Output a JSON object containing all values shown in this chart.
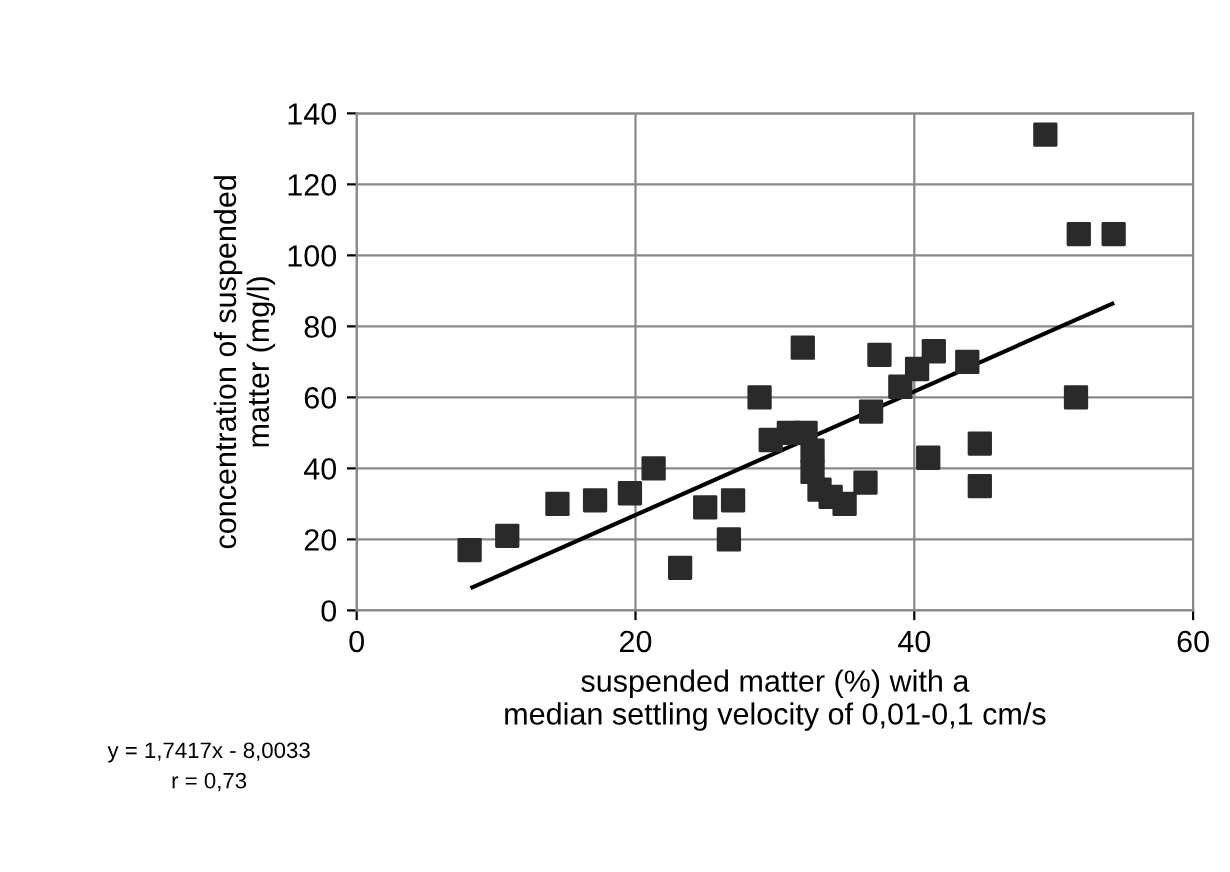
{
  "chart_data": {
    "type": "scatter",
    "xlabel": "suspended matter (%) with a\nmedian settling velocity of 0,01-0,1 cm/s",
    "ylabel": "concentration of suspended\nmatter (mg/l)",
    "series": [
      {
        "color": "#2a2a2a",
        "marker": "square",
        "x": [
          8.1,
          10.8,
          14.4,
          17.1,
          19.6,
          21.3,
          23.2,
          25.0,
          27.0,
          26.7,
          28.9,
          32.0,
          29.7,
          31.0,
          32.2,
          32.7,
          32.7,
          33.2,
          34.0,
          35.0,
          36.5,
          36.9,
          37.5,
          39.0,
          40.2,
          41.4,
          43.8,
          41.0,
          44.7,
          44.7,
          49.4,
          51.8,
          54.3,
          51.6
        ],
        "values": [
          17,
          21,
          30,
          31,
          33,
          40,
          12,
          29,
          31,
          20,
          60,
          74,
          48,
          50,
          50,
          45,
          39,
          34,
          32,
          30,
          36,
          56,
          72,
          63,
          68,
          73,
          70,
          43,
          47,
          35,
          134,
          106,
          106,
          60
        ]
      },
      {
        "type": "line",
        "color": "#000000",
        "marker": "none",
        "line_style": "solid",
        "x": [
          8.3,
          54.2
        ],
        "values": [
          6.5,
          86.4
        ]
      }
    ],
    "xlim": [
      0,
      60
    ],
    "xticks": [
      0,
      20,
      40,
      60
    ],
    "ylim": [
      0,
      140
    ],
    "yticks": [
      0,
      20,
      40,
      60,
      80,
      100,
      120,
      140
    ],
    "grid": true,
    "legend": false,
    "annotations": [
      "y = 1,7417x - 8,0033\nr = 0,73"
    ]
  }
}
